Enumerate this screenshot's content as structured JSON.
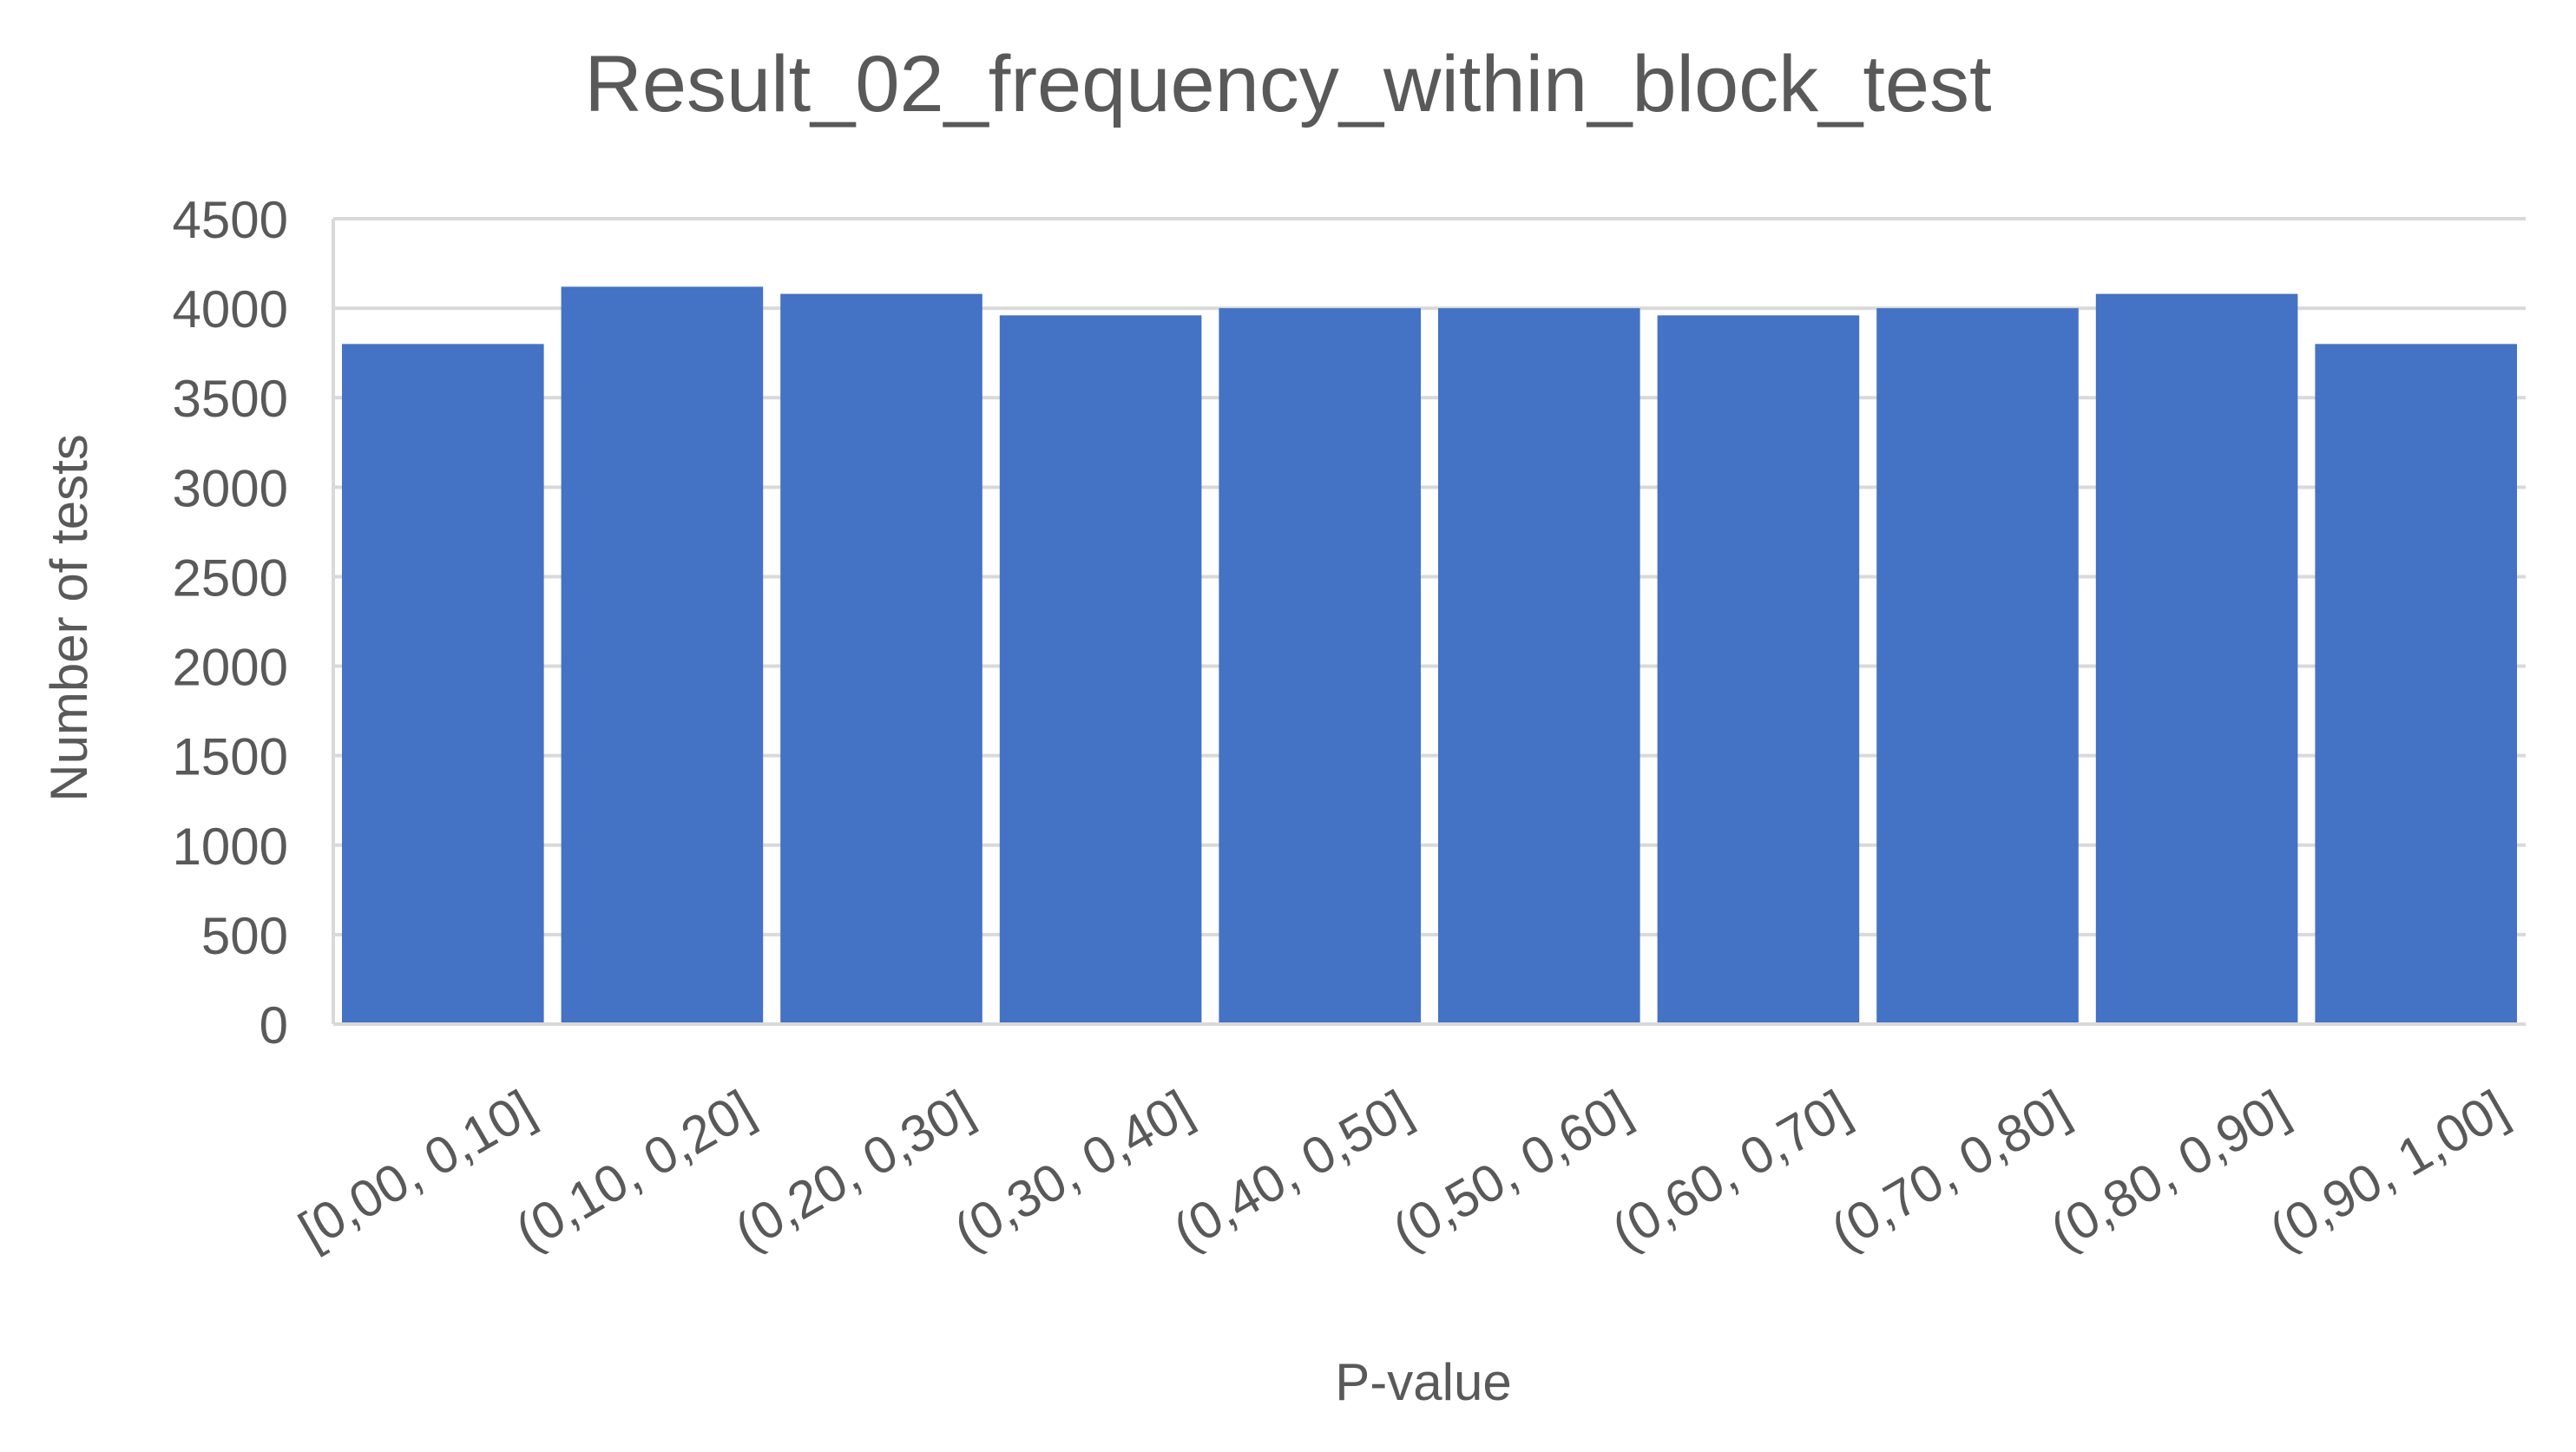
{
  "chart_data": {
    "type": "bar",
    "title": "Result_02_frequency_within_block_test",
    "xlabel": "P-value",
    "ylabel": "Number of tests",
    "categories": [
      "[0,00, 0,10]",
      "(0,10, 0,20]",
      "(0,20, 0,30]",
      "(0,30, 0,40]",
      "(0,40, 0,50]",
      "(0,50, 0,60]",
      "(0,60, 0,70]",
      "(0,70, 0,80]",
      "(0,80, 0,90]",
      "(0,90, 1,00]"
    ],
    "values": [
      3800,
      4120,
      4080,
      3960,
      4000,
      4000,
      3960,
      4000,
      4080,
      3800
    ],
    "ylim": [
      0,
      4500
    ],
    "yticks": [
      0,
      500,
      1000,
      1500,
      2000,
      2500,
      3000,
      3500,
      4000,
      4500
    ],
    "grid": true,
    "legend": "none",
    "colors": {
      "bar": "#4472C4",
      "grid": "#D9D9D9",
      "axis": "#D9D9D9",
      "text": "#595959"
    }
  }
}
